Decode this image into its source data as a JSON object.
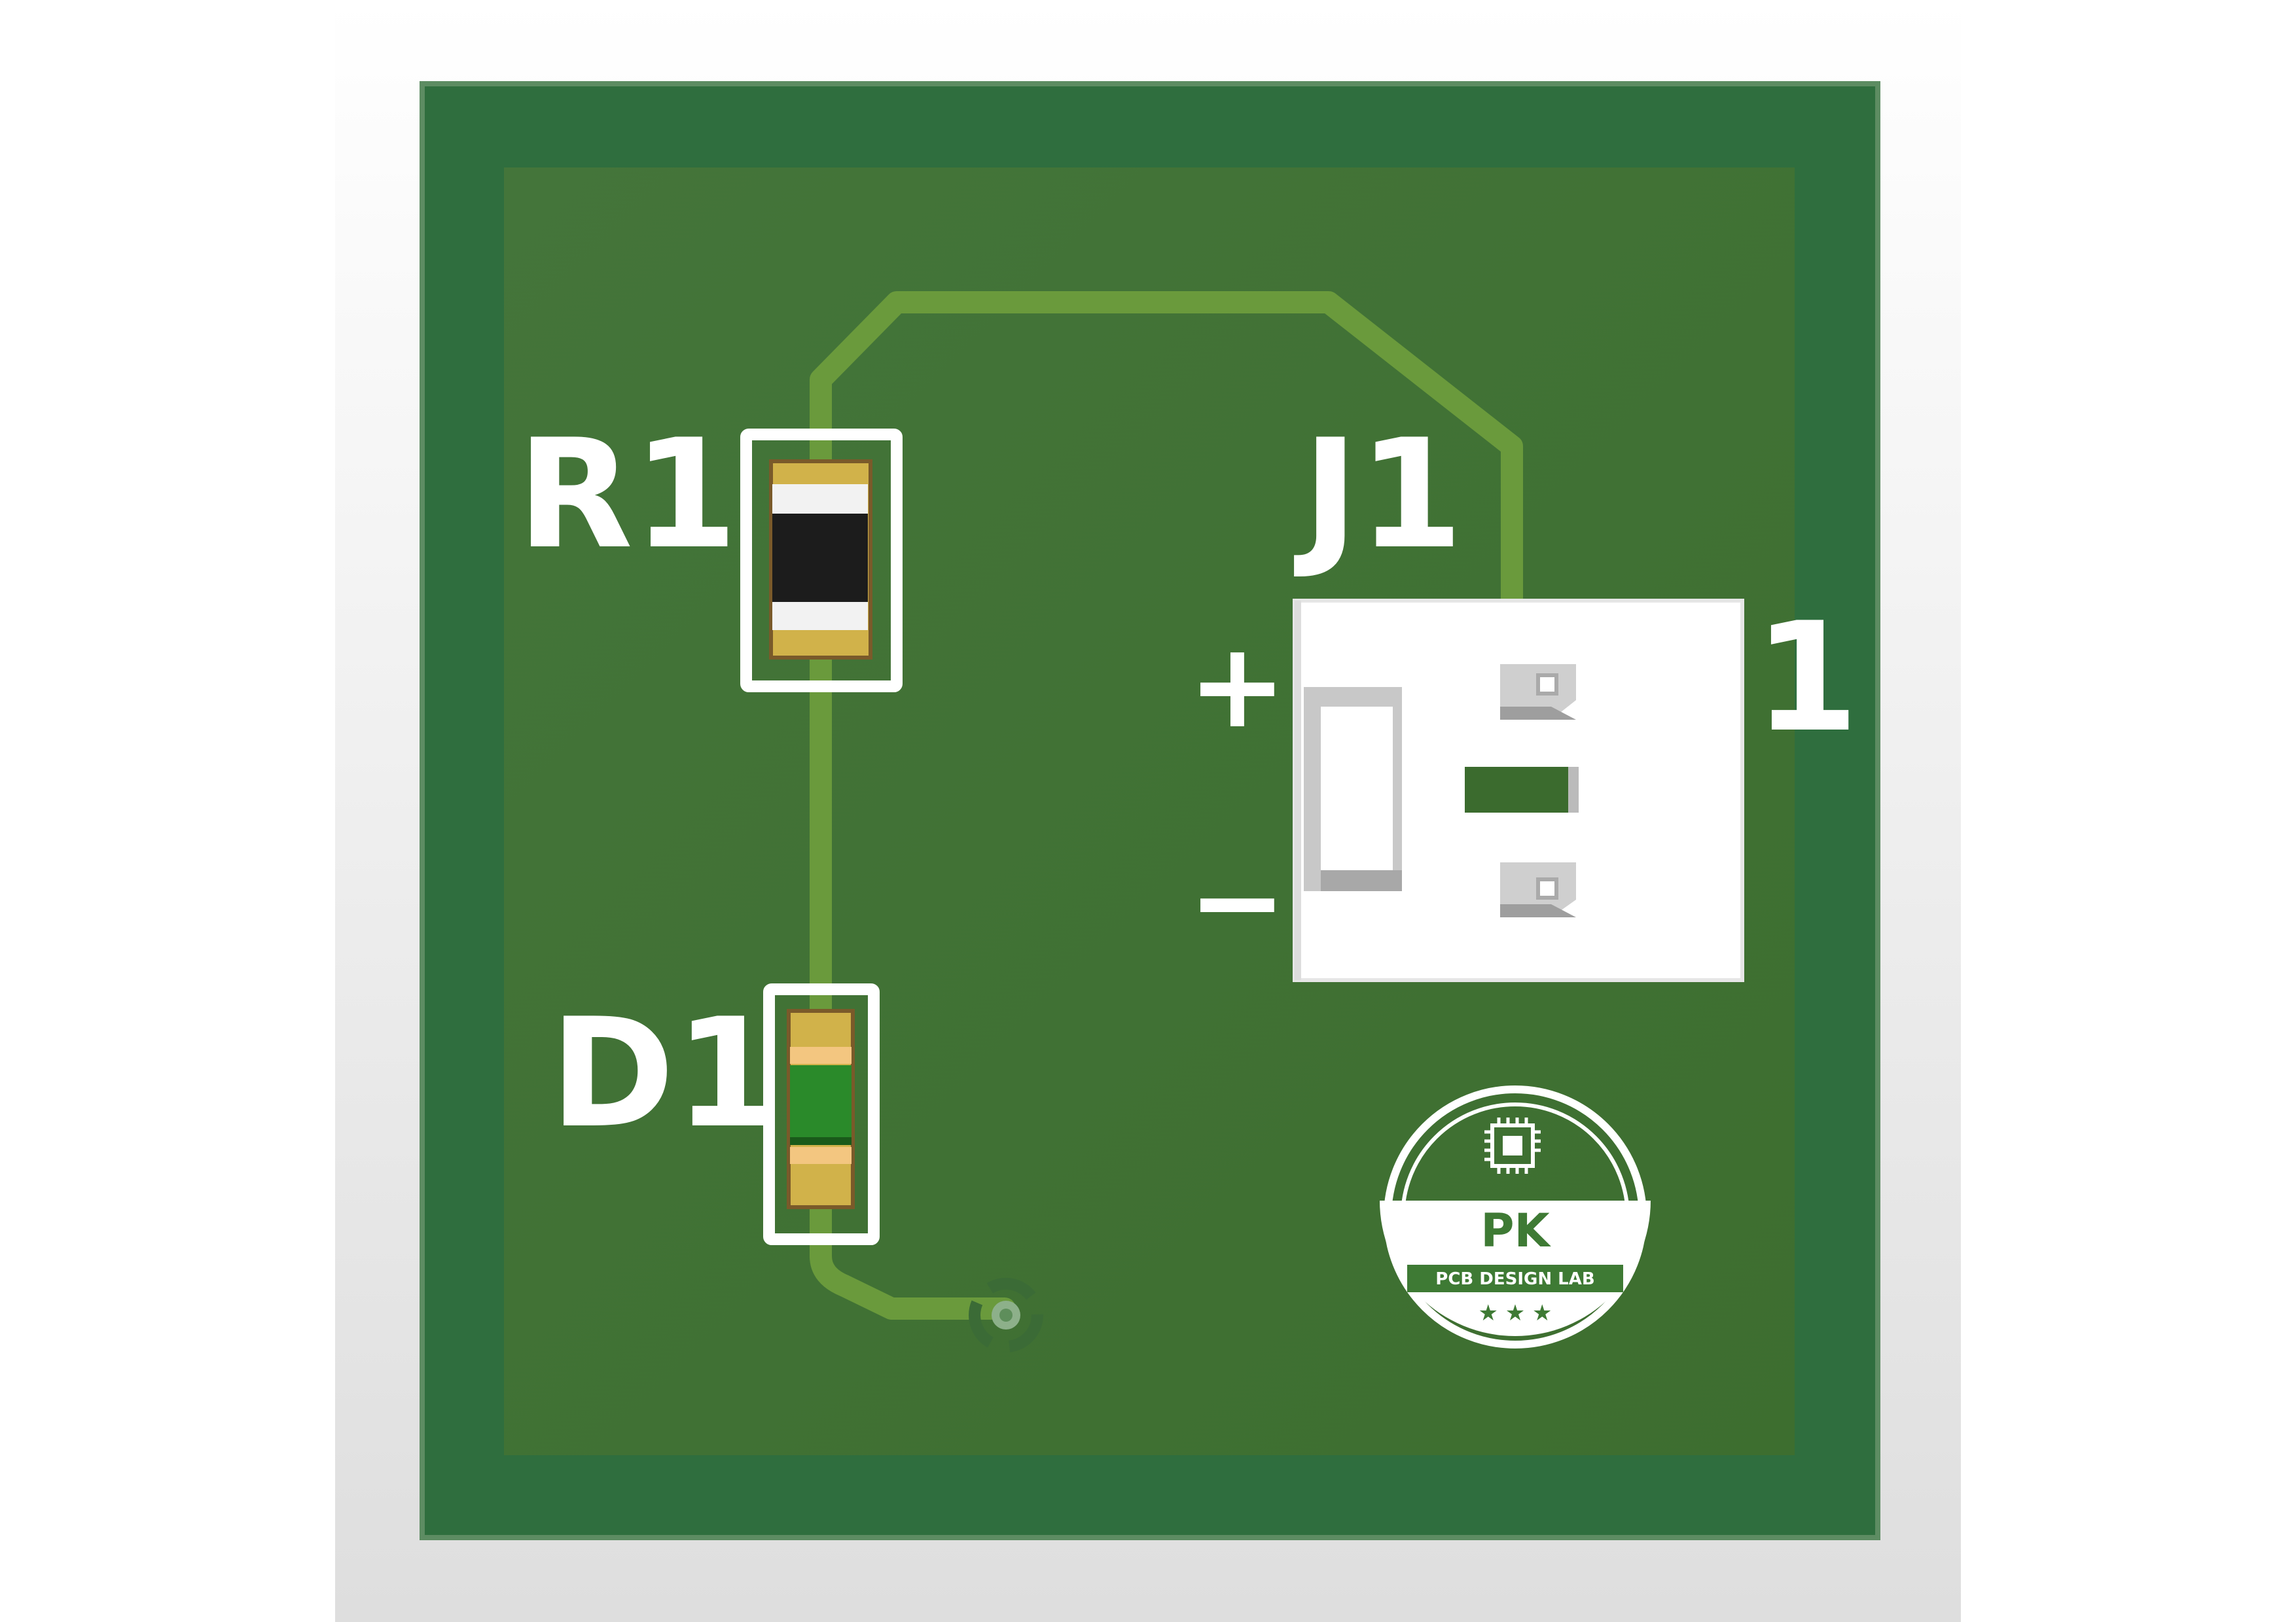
{
  "colors": {
    "board_edge": "#2f6e3e",
    "board_fill": "#427433",
    "trace": "#6a9a3c",
    "silkscreen": "#ffffff",
    "pad_gold": "#d1b24a",
    "resistor_body": "#1c1c1c",
    "led_body": "#2a8a2a",
    "stage_bg": "#e8e8e8"
  },
  "components": {
    "r1": {
      "designator": "R1",
      "type": "resistor"
    },
    "d1": {
      "designator": "D1",
      "type": "led"
    },
    "j1": {
      "designator": "J1",
      "type": "connector",
      "pin1_label": "1",
      "plus_label": "+",
      "minus_label": "−"
    }
  },
  "via": {
    "type": "via"
  },
  "logo": {
    "monogram": "PK",
    "banner": "PCB DESIGN LAB",
    "stars": "★ ★ ★",
    "icon": "chip-icon"
  }
}
